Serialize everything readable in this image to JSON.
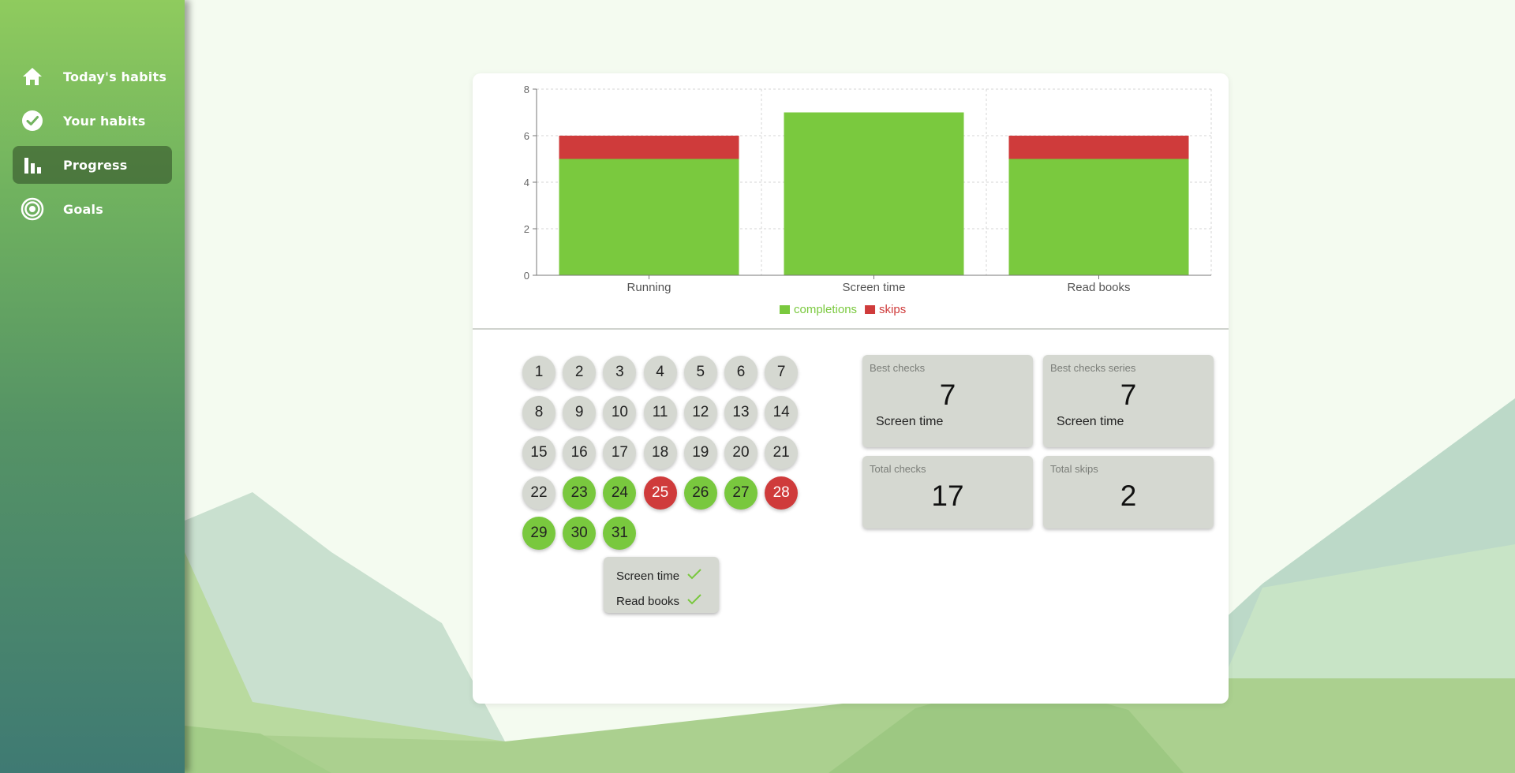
{
  "sidebar": {
    "items": [
      {
        "label": "Today's habits",
        "icon": "home-icon"
      },
      {
        "label": "Your habits",
        "icon": "check-circle-icon"
      },
      {
        "label": "Progress",
        "icon": "bar-chart-icon",
        "active": true
      },
      {
        "label": "Goals",
        "icon": "target-icon"
      }
    ]
  },
  "chart_data": {
    "type": "bar",
    "stacked": true,
    "categories": [
      "Running",
      "Screen time",
      "Read books"
    ],
    "series": [
      {
        "name": "completions",
        "values": [
          5,
          7,
          5
        ],
        "color": "#7ac93e"
      },
      {
        "name": "skips",
        "values": [
          1,
          0,
          1
        ],
        "color": "#cf3b3b"
      }
    ],
    "yticks": [
      "0",
      "2",
      "4",
      "6",
      "8"
    ],
    "ylim": [
      0,
      8
    ],
    "grid": true,
    "legend": "bottom-center"
  },
  "calendar": {
    "days": [
      {
        "n": "1",
        "status": "none"
      },
      {
        "n": "2",
        "status": "none"
      },
      {
        "n": "3",
        "status": "none"
      },
      {
        "n": "4",
        "status": "none"
      },
      {
        "n": "5",
        "status": "none"
      },
      {
        "n": "6",
        "status": "none"
      },
      {
        "n": "7",
        "status": "none"
      },
      {
        "n": "8",
        "status": "none"
      },
      {
        "n": "9",
        "status": "none"
      },
      {
        "n": "10",
        "status": "none"
      },
      {
        "n": "11",
        "status": "none"
      },
      {
        "n": "12",
        "status": "none"
      },
      {
        "n": "13",
        "status": "none"
      },
      {
        "n": "14",
        "status": "none"
      },
      {
        "n": "15",
        "status": "none"
      },
      {
        "n": "16",
        "status": "none"
      },
      {
        "n": "17",
        "status": "none"
      },
      {
        "n": "18",
        "status": "none"
      },
      {
        "n": "19",
        "status": "none"
      },
      {
        "n": "20",
        "status": "none"
      },
      {
        "n": "21",
        "status": "none"
      },
      {
        "n": "22",
        "status": "none"
      },
      {
        "n": "23",
        "status": "completed"
      },
      {
        "n": "24",
        "status": "completed"
      },
      {
        "n": "25",
        "status": "skipped"
      },
      {
        "n": "26",
        "status": "completed"
      },
      {
        "n": "27",
        "status": "completed"
      },
      {
        "n": "28",
        "status": "skipped"
      },
      {
        "n": "29",
        "status": "completed"
      },
      {
        "n": "30",
        "status": "completed"
      },
      {
        "n": "31",
        "status": "completed"
      }
    ],
    "tooltip": {
      "items": [
        "Screen time",
        "Read books"
      ]
    }
  },
  "stats": {
    "best_checks": {
      "title": "Best checks",
      "value": "7",
      "habit": "Screen time"
    },
    "best_series": {
      "title": "Best checks series",
      "value": "7",
      "habit": "Screen time"
    },
    "total_checks": {
      "title": "Total checks",
      "value": "17"
    },
    "total_skips": {
      "title": "Total skips",
      "value": "2"
    }
  }
}
